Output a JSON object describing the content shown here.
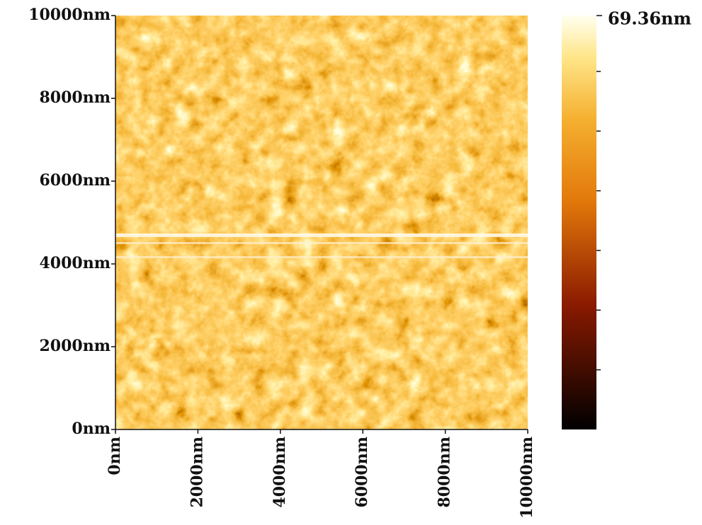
{
  "chart_data": {
    "type": "image",
    "xlim": [
      0,
      10000
    ],
    "ylim": [
      0,
      10000
    ],
    "xticks": [
      {
        "value": 0,
        "label": "0nm"
      },
      {
        "value": 2000,
        "label": "2000nm"
      },
      {
        "value": 4000,
        "label": "4000nm"
      },
      {
        "value": 6000,
        "label": "6000nm"
      },
      {
        "value": 8000,
        "label": "8000nm"
      },
      {
        "value": 10000,
        "label": "10000nm"
      }
    ],
    "yticks": [
      {
        "value": 0,
        "label": "0nm"
      },
      {
        "value": 2000,
        "label": "2000nm"
      },
      {
        "value": 4000,
        "label": "4000nm"
      },
      {
        "value": 6000,
        "label": "6000nm"
      },
      {
        "value": 8000,
        "label": "8000nm"
      },
      {
        "value": 10000,
        "label": "10000nm"
      }
    ],
    "colorbar_lim": [
      0,
      69.36
    ],
    "colorbar_max_label": "69.36nm",
    "colorbar_ticks": [
      10,
      20,
      30,
      40,
      50,
      60
    ]
  }
}
